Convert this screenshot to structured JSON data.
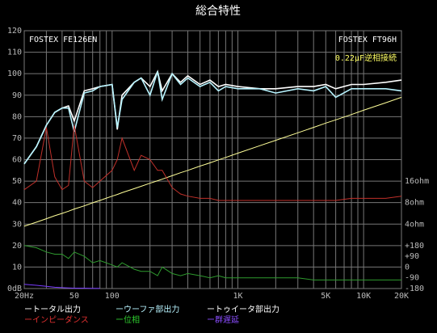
{
  "chart_data": {
    "type": "line",
    "title": "総合特性",
    "annotations": [
      {
        "text": "FOSTEX FE126EN",
        "color": "#ffffff",
        "corner": "top-left"
      },
      {
        "text": "FOSTEX FT96H",
        "color": "#ffffff",
        "corner": "top-right"
      },
      {
        "text": "0.22μF逆相接続",
        "color": "#ffff66",
        "corner": "top-right-2"
      }
    ],
    "log_x": true,
    "grid": true,
    "xlim": [
      20,
      20000
    ],
    "xticks": [
      {
        "value": 20,
        "label": "20Hz"
      },
      50,
      100,
      {
        "value": 1000,
        "label": "1K"
      },
      {
        "value": 5000,
        "label": "5K"
      },
      {
        "value": 10000,
        "label": "10K"
      },
      {
        "value": 20000,
        "label": "20K"
      }
    ],
    "xgrid": [
      30,
      40,
      60,
      70,
      80,
      90,
      200,
      300,
      400,
      500,
      600,
      700,
      800,
      900,
      2000,
      3000,
      4000,
      6000,
      7000,
      8000,
      9000
    ],
    "ylim": [
      0,
      120
    ],
    "yticks": [
      {
        "value": 0,
        "label": "0dB"
      },
      10,
      20,
      30,
      40,
      50,
      60,
      70,
      80,
      90,
      100,
      110,
      120
    ],
    "y2lim": [
      0,
      120
    ],
    "y2ticks": [
      {
        "value": 50,
        "label": "16ohm"
      },
      {
        "value": 40,
        "label": "8ohm"
      },
      {
        "value": 30,
        "label": "4ohm"
      },
      {
        "value": 20,
        "label": "+180"
      },
      {
        "value": 15,
        "label": "+90"
      },
      {
        "value": 10,
        "label": "0"
      },
      {
        "value": 5,
        "label": "-90"
      },
      {
        "value": 0,
        "label": "-180"
      }
    ],
    "x": [
      20,
      25,
      30,
      35,
      40,
      45,
      50,
      60,
      70,
      80,
      100,
      110,
      120,
      150,
      170,
      200,
      230,
      250,
      300,
      350,
      400,
      500,
      600,
      700,
      800,
      1000,
      1500,
      2000,
      3000,
      4000,
      5000,
      6000,
      8000,
      10000,
      15000,
      20000
    ],
    "series": [
      {
        "name": "ートータル出力",
        "color": "#ffffff",
        "label_color": "#ffffff",
        "values": [
          58,
          66,
          76,
          82,
          84,
          85,
          78,
          92,
          93,
          94,
          95,
          74,
          90,
          96,
          98,
          94,
          101,
          92,
          100,
          96,
          99,
          95,
          97,
          94,
          95,
          94,
          93,
          93,
          94,
          94,
          95,
          93,
          95,
          95,
          96,
          97
        ]
      },
      {
        "name": "ーウーファ部出力",
        "color": "#b8f4ff",
        "label_color": "#b8f4ff",
        "values": [
          58,
          66,
          76,
          82,
          84,
          84,
          73,
          91,
          92,
          94,
          95,
          75,
          88,
          96,
          98,
          90,
          101,
          88,
          100,
          95,
          98,
          94,
          96,
          92,
          94,
          93,
          93,
          91,
          93,
          92,
          94,
          89,
          93,
          93,
          93,
          92
        ]
      },
      {
        "name": "ートゥイータ部出力",
        "color": "#ffff99",
        "label_color": "#ffffff",
        "values": [
          29,
          30.9,
          32.5,
          33.9,
          35,
          36,
          37,
          38.5,
          39.9,
          41,
          43,
          43.8,
          44.6,
          46.5,
          47.6,
          49,
          50.2,
          50.9,
          52.5,
          53.9,
          55,
          57,
          58.5,
          59.9,
          61,
          63,
          66.5,
          69,
          72.5,
          75,
          77,
          78.5,
          81,
          83,
          86.5,
          89
        ]
      },
      {
        "name": "ーインピーダンス",
        "color": "#c0302a",
        "label_color": "#e03030",
        "values": [
          46,
          50,
          75,
          52,
          46,
          48,
          76,
          50,
          47,
          50,
          55,
          60,
          70,
          55,
          62,
          60,
          55,
          55,
          47,
          44,
          43,
          42,
          42,
          41,
          41,
          41,
          41,
          41,
          41,
          41,
          41,
          41,
          42,
          42,
          42,
          43
        ]
      },
      {
        "name": "ー位相",
        "color": "#2e9a2e",
        "label_color": "#2ecc2e",
        "values": [
          20,
          19,
          17,
          16,
          16,
          14,
          17,
          15,
          12,
          13,
          11,
          10,
          12,
          9,
          8,
          8,
          6,
          10,
          7,
          6,
          7,
          6,
          5,
          6,
          5,
          5,
          5,
          5,
          5,
          4,
          4,
          4,
          4,
          4,
          4,
          4
        ]
      },
      {
        "name": "ー群遅延",
        "color": "#7a3cff",
        "label_color": "#8a4cff",
        "values": [
          2,
          1.5,
          1,
          0.6,
          0.4,
          0.3,
          0.2,
          0.2,
          0.1,
          0.1,
          null,
          null,
          null,
          null,
          null,
          null,
          null,
          null,
          null,
          null,
          null,
          null,
          null,
          null,
          null,
          null,
          null,
          null,
          null,
          null,
          null,
          null,
          null,
          null,
          null,
          null
        ]
      }
    ]
  }
}
